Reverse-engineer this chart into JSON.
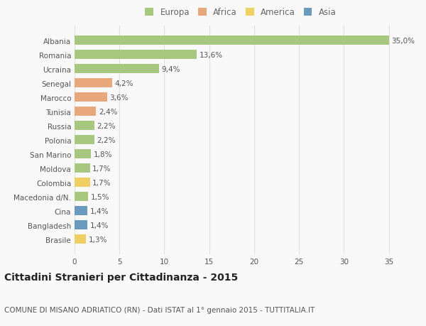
{
  "categories": [
    "Albania",
    "Romania",
    "Ucraina",
    "Senegal",
    "Marocco",
    "Tunisia",
    "Russia",
    "Polonia",
    "San Marino",
    "Moldova",
    "Colombia",
    "Macedonia d/N.",
    "Cina",
    "Bangladesh",
    "Brasile"
  ],
  "values": [
    35.0,
    13.6,
    9.4,
    4.2,
    3.6,
    2.4,
    2.2,
    2.2,
    1.8,
    1.7,
    1.7,
    1.5,
    1.4,
    1.4,
    1.3
  ],
  "labels": [
    "35,0%",
    "13,6%",
    "9,4%",
    "4,2%",
    "3,6%",
    "2,4%",
    "2,2%",
    "2,2%",
    "1,8%",
    "1,7%",
    "1,7%",
    "1,5%",
    "1,4%",
    "1,4%",
    "1,3%"
  ],
  "continents": [
    "Europa",
    "Europa",
    "Europa",
    "Africa",
    "Africa",
    "Africa",
    "Europa",
    "Europa",
    "Europa",
    "Europa",
    "America",
    "Europa",
    "Asia",
    "Asia",
    "America"
  ],
  "colors": {
    "Europa": "#a8c87f",
    "Africa": "#e8a87c",
    "America": "#f0d060",
    "Asia": "#6a9bbf"
  },
  "xlim": [
    0,
    37
  ],
  "xticks": [
    0,
    5,
    10,
    15,
    20,
    25,
    30,
    35
  ],
  "title": "Cittadini Stranieri per Cittadinanza - 2015",
  "subtitle": "COMUNE DI MISANO ADRIATICO (RN) - Dati ISTAT al 1° gennaio 2015 - TUTTITALIA.IT",
  "background_color": "#f9f9f9",
  "grid_color": "#e0e0e0",
  "title_fontsize": 10,
  "subtitle_fontsize": 7.5,
  "label_fontsize": 7.5,
  "ytick_fontsize": 7.5,
  "xtick_fontsize": 7.5,
  "legend_fontsize": 8.5,
  "bar_height": 0.65
}
